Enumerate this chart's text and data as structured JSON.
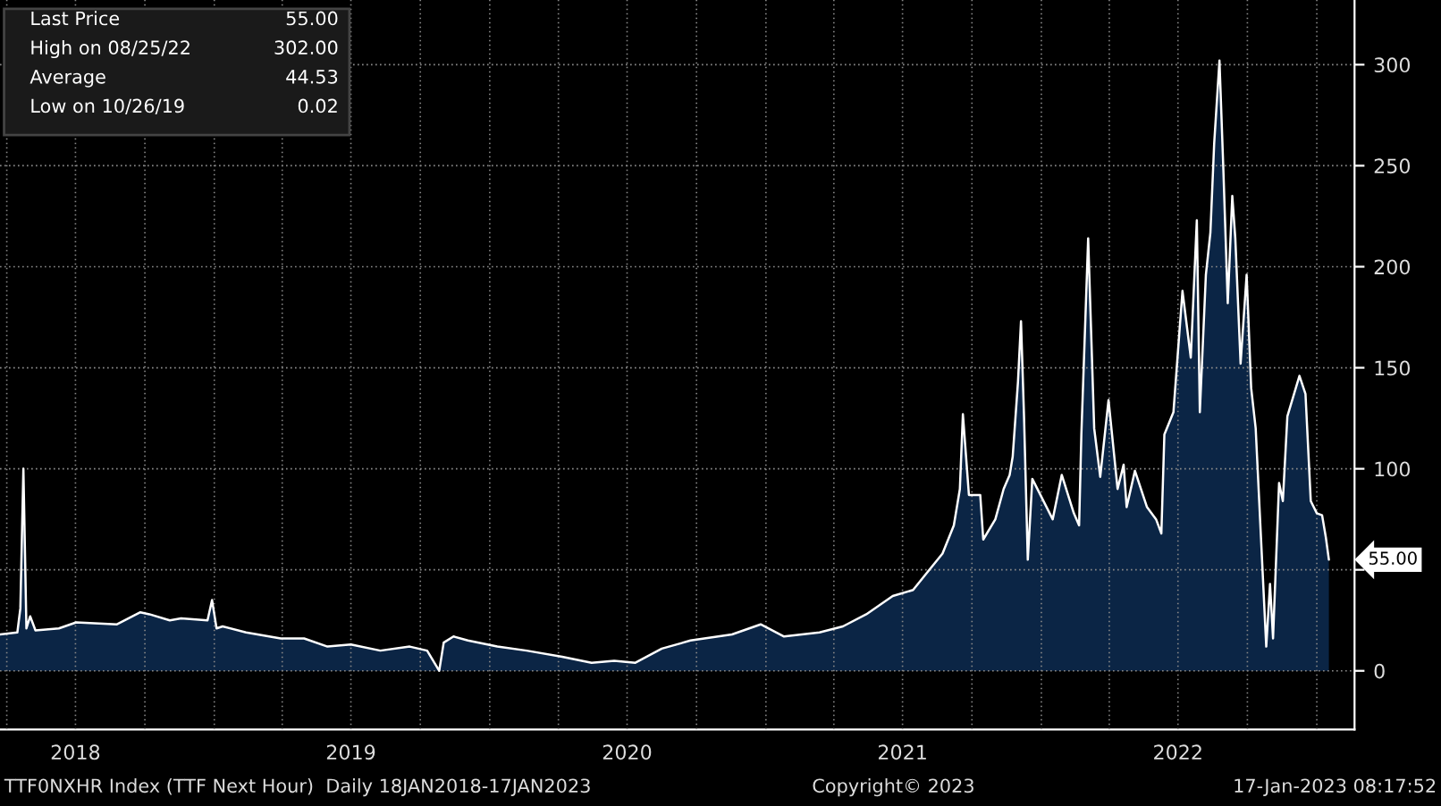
{
  "chart_data": {
    "type": "area",
    "x": [
      "2018-03-23",
      "2018-04-15",
      "2018-04-19",
      "2018-04-23",
      "2018-04-27",
      "2018-05-02",
      "2018-05-09",
      "2018-06-09",
      "2018-07-02",
      "2018-08-25",
      "2018-09-25",
      "2018-10-07",
      "2018-11-03",
      "2018-11-18",
      "2018-12-23",
      "2018-12-29",
      "2019-01-04",
      "2019-01-12",
      "2019-02-12",
      "2019-03-30",
      "2019-04-30",
      "2019-05-31",
      "2019-07-01",
      "2019-08-09",
      "2019-09-17",
      "2019-10-10",
      "2019-10-26",
      "2019-11-01",
      "2019-11-14",
      "2019-12-03",
      "2020-01-11",
      "2020-02-19",
      "2020-04-06",
      "2020-05-15",
      "2020-06-14",
      "2020-07-12",
      "2020-08-16",
      "2020-09-23",
      "2020-11-17",
      "2020-12-25",
      "2021-01-25",
      "2021-03-13",
      "2021-04-13",
      "2021-05-14",
      "2021-06-18",
      "2021-07-15",
      "2021-07-30",
      "2021-08-23",
      "2021-09-07",
      "2021-09-15",
      "2021-09-19",
      "2021-09-27",
      "2021-10-12",
      "2021-10-16",
      "2021-11-01",
      "2021-11-12",
      "2021-11-20",
      "2021-11-24",
      "2021-12-01",
      "2021-12-05",
      "2021-12-09",
      "2021-12-14",
      "2021-12-20",
      "2022-01-16",
      "2022-01-28",
      "2022-02-13",
      "2022-02-20",
      "2022-02-23",
      "2022-03-04",
      "2022-03-12",
      "2022-03-20",
      "2022-03-31",
      "2022-04-12",
      "2022-04-20",
      "2022-04-24",
      "2022-05-05",
      "2022-05-21",
      "2022-06-02",
      "2022-06-09",
      "2022-06-13",
      "2022-06-25",
      "2022-07-07",
      "2022-07-18",
      "2022-07-26",
      "2022-07-30",
      "2022-08-07",
      "2022-08-13",
      "2022-08-18",
      "2022-08-25",
      "2022-08-30",
      "2022-09-05",
      "2022-09-11",
      "2022-09-15",
      "2022-09-22",
      "2022-09-30",
      "2022-10-06",
      "2022-10-12",
      "2022-10-19",
      "2022-10-26",
      "2022-10-31",
      "2022-11-04",
      "2022-11-12",
      "2022-11-17",
      "2022-11-23",
      "2022-12-09",
      "2022-12-17",
      "2022-12-24",
      "2023-01-01",
      "2023-01-08",
      "2023-01-13",
      "2023-01-17"
    ],
    "series": [
      {
        "color": "#0b2545",
        "values": [
          18,
          19,
          31,
          100,
          21,
          27,
          20,
          21,
          24,
          23,
          29,
          28,
          25,
          26,
          25,
          35,
          21,
          22,
          19,
          16,
          16,
          12,
          13,
          10,
          12,
          10,
          0.02,
          14,
          17,
          15,
          12,
          10,
          7,
          4,
          5,
          4,
          11,
          15,
          18,
          23,
          17,
          19,
          22,
          28,
          37,
          40,
          47,
          58,
          72,
          90,
          127,
          87,
          87,
          65,
          75,
          90,
          97,
          106,
          143,
          173,
          126,
          55,
          95,
          75,
          97,
          78,
          72,
          117,
          214,
          120,
          96,
          134,
          90,
          102,
          81,
          99,
          81,
          75,
          68,
          117,
          128,
          188,
          155,
          223,
          128,
          196,
          217,
          261,
          302,
          250,
          182,
          235,
          214,
          152,
          196,
          140,
          120,
          66,
          12,
          43,
          16,
          93,
          84,
          126,
          146,
          137,
          84,
          78,
          77,
          66,
          55
        ]
      }
    ],
    "xlim": [
      "2018-03-23",
      "2023-02-20"
    ],
    "xticks": [
      {
        "value": "2018-04-01",
        "label": null
      },
      {
        "value": "2018-07-01",
        "label": "2018"
      },
      {
        "value": "2018-10-01",
        "label": null
      },
      {
        "value": "2019-01-01",
        "label": null
      },
      {
        "value": "2019-04-01",
        "label": null
      },
      {
        "value": "2019-07-01",
        "label": "2019"
      },
      {
        "value": "2019-10-01",
        "label": null
      },
      {
        "value": "2020-01-01",
        "label": null
      },
      {
        "value": "2020-04-01",
        "label": null
      },
      {
        "value": "2020-07-01",
        "label": "2020"
      },
      {
        "value": "2020-10-01",
        "label": null
      },
      {
        "value": "2021-01-01",
        "label": null
      },
      {
        "value": "2021-04-01",
        "label": null
      },
      {
        "value": "2021-07-01",
        "label": "2021"
      },
      {
        "value": "2021-10-01",
        "label": null
      },
      {
        "value": "2022-01-01",
        "label": null
      },
      {
        "value": "2022-04-01",
        "label": null
      },
      {
        "value": "2022-07-01",
        "label": "2022"
      },
      {
        "value": "2022-10-01",
        "label": null
      },
      {
        "value": "2023-01-01",
        "label": null
      }
    ],
    "ylim": [
      -29,
      332
    ],
    "yticks": [
      0,
      {
        "value": 50,
        "label": null
      },
      100,
      150,
      200,
      250,
      300
    ],
    "grid": true,
    "annotations": [
      "Last Price",
      "55.00",
      "High on 08/25/22",
      "302.00",
      "Average",
      "44.53",
      "Low on 10/26/19",
      "0.02",
      {
        "text": "55.00",
        "x": "2023-01-17",
        "y": 55
      },
      "TTF0NXHR Index (TTF Next Hour)  Daily 18JAN2018-17JAN2023",
      "Copyright© 2023",
      "17-Jan-2023 08:17:52"
    ]
  }
}
